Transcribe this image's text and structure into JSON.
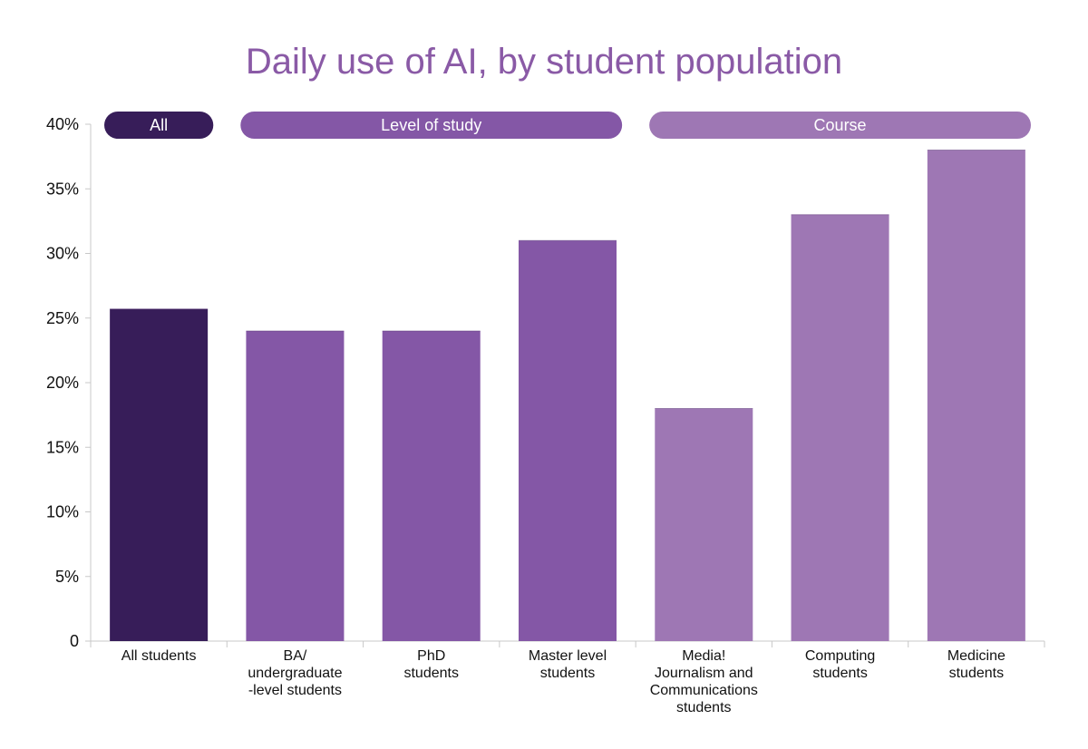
{
  "chart_data": {
    "type": "bar",
    "title": "Daily use of AI, by student population",
    "categories": [
      "All students",
      "BA/\nundergraduate\n-level students",
      "PhD\nstudents",
      "Master level\nstudents",
      "Media!\nJournalism and\nCommunications\nstudents",
      "Computing\nstudents",
      "Medicine\nstudents"
    ],
    "values": [
      25.7,
      24,
      24,
      31,
      18,
      33,
      38
    ],
    "bar_groups": [
      "All",
      "Level of study",
      "Level of study",
      "Level of study",
      "Course",
      "Course",
      "Course"
    ],
    "groups": [
      {
        "label": "All",
        "color": "#371d59",
        "categories": [
          0,
          0
        ]
      },
      {
        "label": "Level of study",
        "color": "#8457a6",
        "categories": [
          1,
          3
        ]
      },
      {
        "label": "Course",
        "color": "#9e77b4",
        "categories": [
          4,
          6
        ]
      }
    ],
    "ylim": [
      0,
      40
    ],
    "yticks": [
      0,
      5,
      10,
      15,
      20,
      25,
      30,
      35,
      40
    ],
    "ytick_labels": [
      "0",
      "5%",
      "10%",
      "15%",
      "20%",
      "25%",
      "30%",
      "35%",
      "40%"
    ],
    "xlabel": "",
    "ylabel": "",
    "grid": false,
    "legend": "group labels above plot"
  }
}
